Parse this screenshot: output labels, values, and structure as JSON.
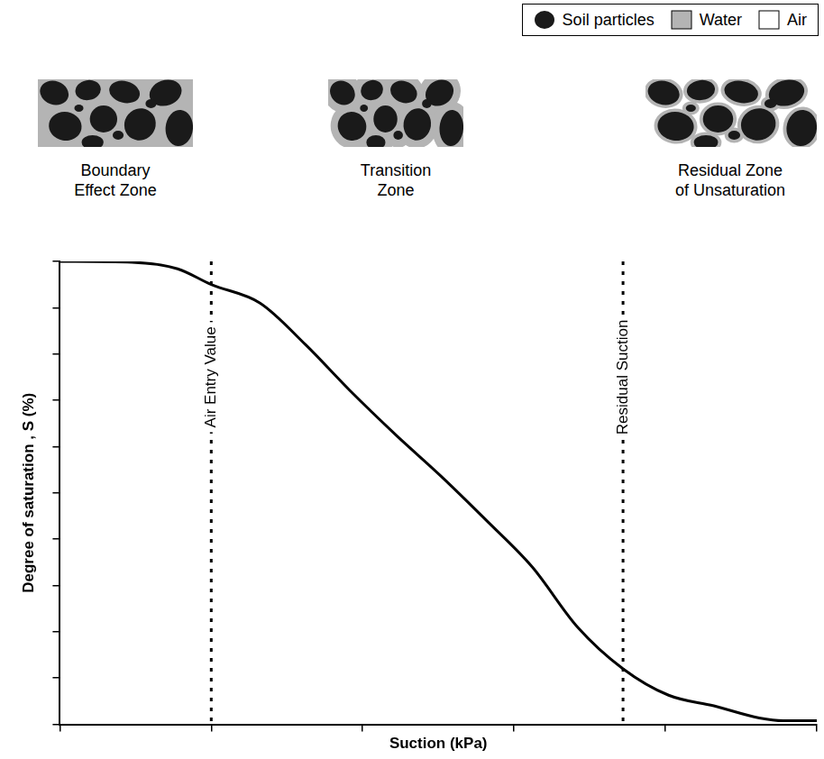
{
  "chart_data": {
    "type": "line",
    "x_label": "Suction (kPa)",
    "y_label": "Degree of saturation , S (%)",
    "x": [
      0.1,
      0.3,
      0.6,
      1,
      2.1,
      4.2,
      8.3,
      16.6,
      33,
      66,
      132,
      263,
      525,
      1050,
      2090,
      4170,
      6000,
      10000
    ],
    "values": [
      100,
      99.8,
      98.4,
      95,
      91,
      82,
      72,
      62.5,
      53.6,
      44,
      34,
      21,
      12,
      6.3,
      4,
      1.4,
      0.8,
      0.8
    ],
    "color": "#000000",
    "line_style": "solid",
    "marker": "none",
    "xlim": [
      0.1,
      10000
    ],
    "xticks": [
      0.1,
      1,
      10,
      100,
      1000,
      10000
    ],
    "ylim": [
      0,
      100
    ],
    "yticks": [
      0,
      10,
      20,
      30,
      40,
      50,
      60,
      70,
      80,
      90,
      100
    ],
    "log": "x",
    "grid": false,
    "tick_labels": false,
    "annotations": [
      {
        "type": "vline",
        "x": 1,
        "text": "Air Entry Value"
      },
      {
        "type": "vline",
        "x": 525,
        "text": "Residual Suction"
      }
    ]
  },
  "illustration": {
    "key": [
      {
        "label": "Soil particles",
        "color": "#1a1a1a"
      },
      {
        "label": "Water",
        "color": "#b4b4b4"
      },
      {
        "label": "Air",
        "color": "#ffffff"
      }
    ],
    "zones": [
      {
        "lines": [
          "Boundary",
          "Effect Zone"
        ]
      },
      {
        "lines": [
          "Transition",
          "Zone"
        ]
      },
      {
        "lines": [
          "Residual Zone",
          "of Unsaturation"
        ]
      }
    ]
  }
}
